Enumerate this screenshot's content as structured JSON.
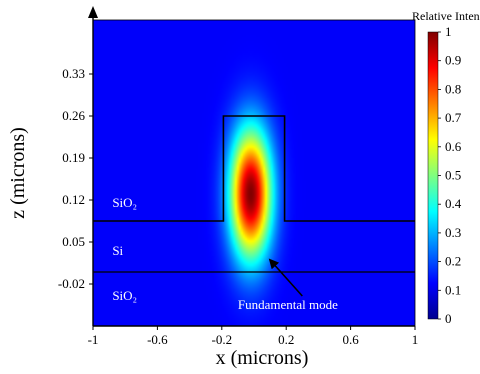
{
  "chart_data": {
    "type": "heatmap",
    "title": "",
    "xlabel": "x (microns)",
    "ylabel": "z (microns)",
    "xlim": [
      -1.0,
      1.0
    ],
    "ylim": [
      -0.09,
      0.42
    ],
    "x_ticks": [
      {
        "value": -1.0,
        "label": "-1"
      },
      {
        "value": -0.6,
        "label": "-0.6"
      },
      {
        "value": -0.2,
        "label": "-0.2"
      },
      {
        "value": 0.2,
        "label": "0.2"
      },
      {
        "value": 0.6,
        "label": "0.6"
      },
      {
        "value": 1.0,
        "label": "1"
      }
    ],
    "y_ticks": [
      {
        "value": -0.02,
        "label": "-0.02"
      },
      {
        "value": 0.05,
        "label": "0.05"
      },
      {
        "value": 0.12,
        "label": "0.12"
      },
      {
        "value": 0.19,
        "label": "0.19"
      },
      {
        "value": 0.26,
        "label": "0.26"
      },
      {
        "value": 0.33,
        "label": "0.33"
      }
    ],
    "colorbar": {
      "title": "Relative Intensity",
      "range": [
        0,
        1
      ],
      "ticks": [
        0,
        0.1,
        0.2,
        0.3,
        0.4,
        0.5,
        0.6,
        0.7,
        0.8,
        0.9,
        1
      ],
      "tick_labels": [
        "0",
        "0.1",
        "0.2",
        "0.3",
        "0.4",
        "0.5",
        "0.6",
        "0.7",
        "0.8",
        "0.9",
        "1"
      ],
      "colormap": "jet"
    },
    "field": {
      "center_x": -0.02,
      "center_z": 0.13,
      "sigma_x": 0.09,
      "sigma_z": 0.075,
      "peak": 1.0,
      "background": 0.12
    },
    "structure": {
      "lower_interface_z": -0.0,
      "slab_top_z": 0.085,
      "ridge_x_range": [
        -0.19,
        0.19
      ],
      "ridge_top_z": 0.26
    },
    "region_labels": [
      {
        "text": "SiO₂",
        "x": -0.88,
        "z": 0.115
      },
      {
        "text": "Si",
        "x": -0.88,
        "z": 0.035
      },
      {
        "text": "SiO₂",
        "x": -0.88,
        "z": -0.04
      }
    ],
    "annotation": {
      "text": "Fundamental mode",
      "text_x": -0.1,
      "text_z": -0.055,
      "arrow_from": [
        0.3,
        -0.04
      ],
      "arrow_to": [
        0.1,
        0.02
      ]
    }
  }
}
